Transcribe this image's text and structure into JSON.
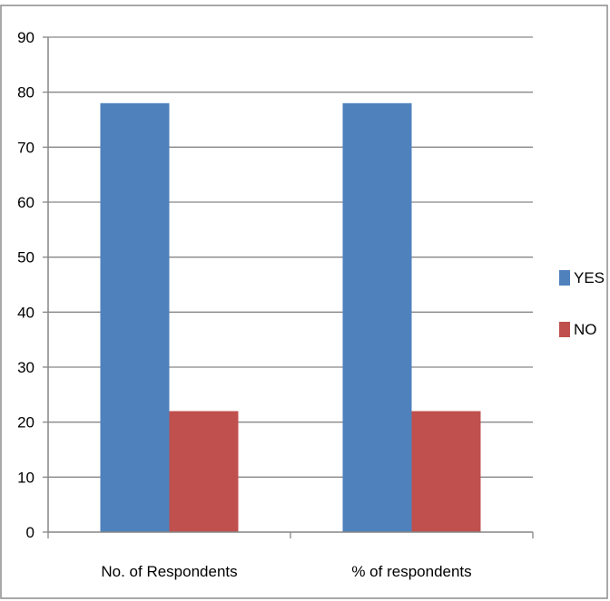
{
  "chart_data": {
    "type": "bar",
    "title": "",
    "xlabel": "",
    "ylabel": "",
    "categories": [
      "No. of Respondents",
      "% of respondents"
    ],
    "series": [
      {
        "name": "YES",
        "values": [
          78,
          78
        ],
        "color": "#4F81BD"
      },
      {
        "name": "NO",
        "values": [
          22,
          22
        ],
        "color": "#C0504D"
      }
    ],
    "ylim": [
      0,
      90
    ],
    "yticks": [
      "0",
      "10",
      "20",
      "30",
      "40",
      "50",
      "60",
      "70",
      "80",
      "90"
    ],
    "grid": true,
    "legend_position": "right"
  }
}
